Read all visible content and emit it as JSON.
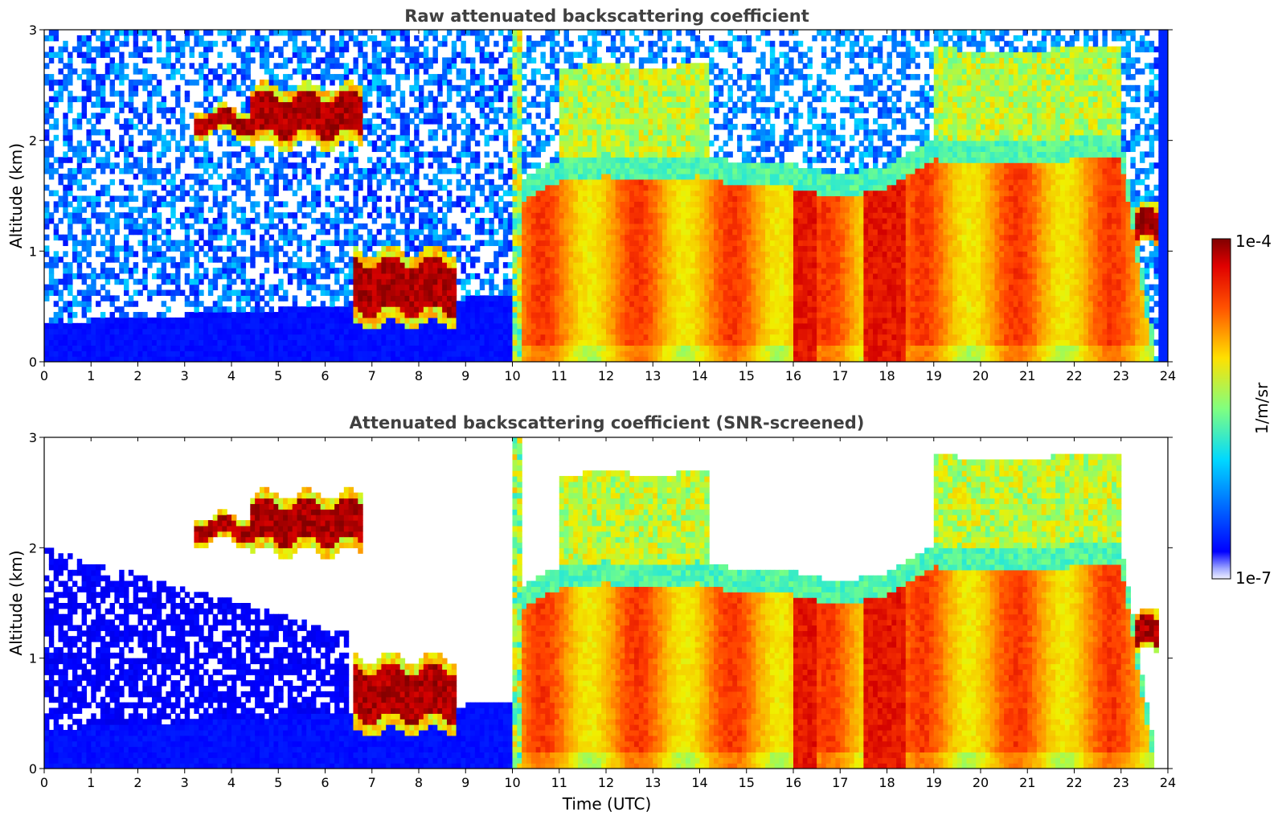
{
  "chart_data": [
    {
      "type": "heatmap",
      "title": "Raw attenuated backscattering coefficient",
      "xlabel": "",
      "ylabel": "Altitude (km)",
      "xlim": [
        0,
        24
      ],
      "ylim": [
        0,
        3
      ],
      "x_ticks": [
        "0",
        "1",
        "2",
        "3",
        "4",
        "5",
        "6",
        "7",
        "8",
        "9",
        "10",
        "11",
        "12",
        "13",
        "14",
        "15",
        "16",
        "17",
        "18",
        "19",
        "20",
        "21",
        "22",
        "23",
        "24"
      ],
      "y_ticks": [
        "0",
        "1",
        "2",
        "3"
      ],
      "colormap": "jet",
      "color_scale": "log",
      "clim": [
        "1e-7",
        "1e-4"
      ],
      "grid": false,
      "screened": false,
      "features": {
        "surface_layer": {
          "t": [
            0,
            10
          ],
          "z_top": [
            0.35,
            0.6
          ]
        },
        "aerosol_layer_top_km": [
          [
            0,
            0.0
          ],
          [
            10.3,
            1.6
          ],
          [
            11,
            1.75
          ],
          [
            12,
            1.8
          ],
          [
            13,
            1.75
          ],
          [
            14,
            1.8
          ],
          [
            15,
            1.7
          ],
          [
            16,
            1.7
          ],
          [
            17,
            1.6
          ],
          [
            18,
            1.7
          ],
          [
            19,
            1.95
          ],
          [
            20,
            1.9
          ],
          [
            21,
            1.9
          ],
          [
            22,
            1.95
          ],
          [
            23,
            1.95
          ],
          [
            23.75,
            0.0
          ]
        ],
        "elevated_layers": [
          {
            "t": [
              3.2,
              4.4
            ],
            "z": [
              2.1,
              2.25
            ]
          },
          {
            "t": [
              4.4,
              6.8
            ],
            "z": [
              2.05,
              2.4
            ]
          },
          {
            "t": [
              6.6,
              8.8
            ],
            "z": [
              0.45,
              0.9
            ]
          },
          {
            "t": [
              23.3,
              23.8
            ],
            "z": [
              1.1,
              1.35
            ]
          }
        ]
      }
    },
    {
      "type": "heatmap",
      "title": "Attenuated backscattering coefficient (SNR-screened)",
      "xlabel": "Time (UTC)",
      "ylabel": "Altitude (km)",
      "xlim": [
        0,
        24
      ],
      "ylim": [
        0,
        3
      ],
      "x_ticks": [
        "0",
        "1",
        "2",
        "3",
        "4",
        "5",
        "6",
        "7",
        "8",
        "9",
        "10",
        "11",
        "12",
        "13",
        "14",
        "15",
        "16",
        "17",
        "18",
        "19",
        "20",
        "21",
        "22",
        "23",
        "24"
      ],
      "y_ticks": [
        "0",
        "1",
        "2",
        "3"
      ],
      "colormap": "jet",
      "color_scale": "log",
      "clim": [
        "1e-7",
        "1e-4"
      ],
      "grid": false,
      "screened": true
    }
  ],
  "colorbar": {
    "label": "1/m/sr",
    "max_label": "1e-4",
    "min_label": "1e-7"
  }
}
